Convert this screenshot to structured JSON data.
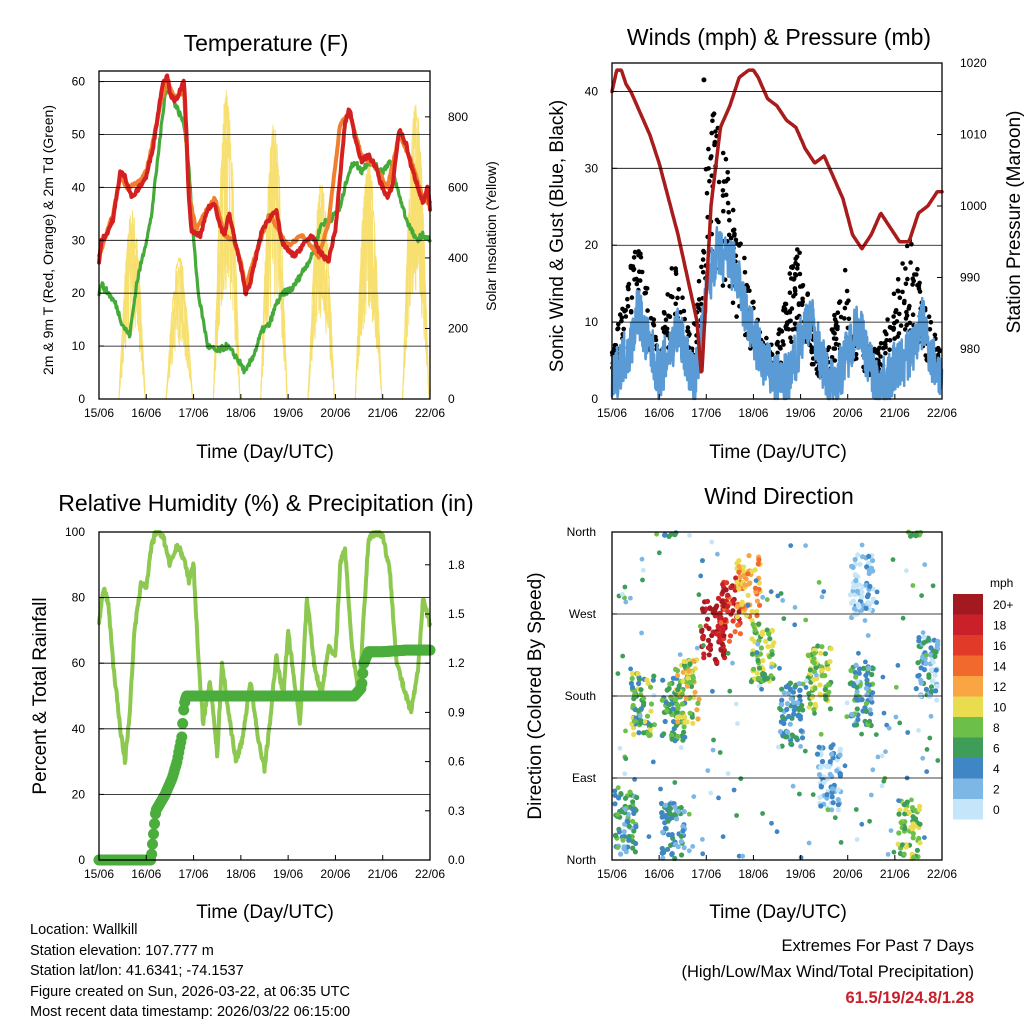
{
  "info": {
    "location": "Location: Wallkill",
    "elevation": "Station elevation: 107.777 m",
    "latlon": "Station lat/lon: 41.6341; -74.1537",
    "created": "Figure created on Sun, 2026-03-22, at 06:35 UTC",
    "latest": "Most recent data timestamp: 2026/03/22 06:15:00"
  },
  "extremes": {
    "title": "Extremes For Past 7 Days",
    "subtitle": "(High/Low/Max Wind/Total Precipitation)",
    "values": "61.5/19/24.8/1.28"
  },
  "colors": {
    "temp2m": "#d42020",
    "temp9m": "#f08030",
    "dewpoint": "#44aa3a",
    "solar": "#f7e070",
    "wind": "#5a9bd5",
    "gust": "#000000",
    "pressure": "#a81c1c",
    "rh": "#8dc850",
    "precip": "#4aad3c"
  },
  "chart_data": [
    {
      "type": "line",
      "title": "Temperature (F)",
      "xlabel": "Time (Day/UTC)",
      "ylabel": "2m & 9m T (Red, Orange) & 2m Td (Green)",
      "y2label": "Solar Insolation (Yellow)",
      "x_ticks": [
        "15/06",
        "16/06",
        "17/06",
        "18/06",
        "19/06",
        "20/06",
        "21/06",
        "22/06"
      ],
      "xlim": [
        0,
        7
      ],
      "ylim": [
        0,
        62
      ],
      "y_ticks": [
        0,
        10,
        20,
        30,
        40,
        50,
        60
      ],
      "y2lim": [
        0,
        930
      ],
      "y2_ticks": [
        0,
        200,
        400,
        600,
        800
      ],
      "grid": true,
      "series": [
        {
          "name": "2m T",
          "axis": "left",
          "color": "temp2m",
          "x": [
            0,
            0.05,
            0.15,
            0.3,
            0.45,
            0.55,
            0.7,
            0.85,
            1,
            1.15,
            1.25,
            1.35,
            1.45,
            1.5,
            1.6,
            1.7,
            1.8,
            1.85,
            1.9,
            1.95,
            2.05,
            2.15,
            2.3,
            2.45,
            2.55,
            2.65,
            2.75,
            2.85,
            3.0,
            3.1,
            3.2,
            3.3,
            3.45,
            3.6,
            3.75,
            3.85,
            4.0,
            4.15,
            4.3,
            4.5,
            4.65,
            4.85,
            5.0,
            5.1,
            5.2,
            5.3,
            5.4,
            5.55,
            5.7,
            5.85,
            5.95,
            6.1,
            6.2,
            6.35,
            6.5,
            6.6,
            6.75,
            6.85,
            6.95,
            7.0
          ],
          "y": [
            26,
            30,
            31,
            34,
            43,
            42,
            38,
            40,
            42,
            48,
            54,
            60,
            61,
            58,
            56,
            58,
            60,
            50,
            38,
            32,
            31,
            31,
            36,
            37,
            33,
            31,
            35,
            31,
            25,
            20,
            22,
            26,
            32,
            34,
            36,
            30,
            28,
            27,
            29,
            31,
            28,
            26,
            32,
            42,
            52,
            55,
            50,
            45,
            46,
            44,
            41,
            38,
            40,
            51,
            48,
            44,
            40,
            37,
            40,
            36
          ]
        },
        {
          "name": "9m T",
          "axis": "left",
          "color": "temp9m",
          "x": [
            0,
            0.3,
            0.45,
            0.6,
            0.85,
            1,
            1.15,
            1.3,
            1.45,
            1.6,
            1.8,
            1.9,
            2.05,
            2.3,
            2.45,
            2.65,
            2.85,
            3.0,
            3.1,
            3.3,
            3.6,
            3.85,
            4.0,
            4.3,
            4.65,
            4.85,
            5.1,
            5.3,
            5.55,
            5.85,
            6.1,
            6.35,
            6.6,
            6.85,
            7.0
          ],
          "y": [
            27,
            35,
            42,
            40,
            41,
            43,
            49,
            56,
            60,
            57,
            58,
            39,
            32,
            36,
            38,
            31,
            30,
            26,
            21,
            27,
            35,
            31,
            29,
            31,
            27,
            33,
            52,
            54,
            46,
            44,
            40,
            50,
            45,
            38,
            37
          ]
        },
        {
          "name": "2m Td",
          "axis": "left",
          "color": "dewpoint",
          "x": [
            0,
            0.05,
            0.1,
            0.2,
            0.35,
            0.5,
            0.65,
            0.8,
            0.95,
            1.1,
            1.2,
            1.3,
            1.4,
            1.5,
            1.6,
            1.7,
            1.8,
            1.9,
            2.0,
            2.1,
            2.2,
            2.3,
            2.5,
            2.7,
            2.9,
            3.1,
            3.3,
            3.45,
            3.6,
            3.75,
            3.9,
            4.1,
            4.3,
            4.5,
            4.7,
            4.9,
            5.1,
            5.25,
            5.4,
            5.55,
            5.7,
            5.85,
            6.0,
            6.15,
            6.3,
            6.5,
            6.7,
            6.85,
            7.0
          ],
          "y": [
            20,
            22,
            21,
            20,
            18,
            14,
            12,
            22,
            28,
            34,
            42,
            50,
            58,
            58,
            56,
            54,
            52,
            44,
            30,
            20,
            15,
            10,
            9,
            10,
            8,
            5,
            9,
            13,
            14,
            18,
            20,
            21,
            24,
            27,
            33,
            34,
            36,
            42,
            45,
            43,
            45,
            44,
            43,
            45,
            40,
            34,
            30,
            31,
            30
          ]
        },
        {
          "name": "Solar",
          "axis": "right",
          "color": "solar",
          "style": "daily-peaks",
          "peaks_day_center": [
            0.7,
            1.7,
            2.7,
            3.7,
            4.7,
            5.7,
            6.7
          ],
          "peaks_value": [
            540,
            410,
            880,
            790,
            620,
            690,
            850
          ]
        }
      ]
    },
    {
      "type": "line",
      "title": "Winds (mph) & Pressure (mb)",
      "xlabel": "Time (Day/UTC)",
      "ylabel": "Sonic Wind & Gust (Blue, Black)",
      "y2label": "Station Pressure (Maroon)",
      "x_ticks": [
        "15/06",
        "16/06",
        "17/06",
        "18/06",
        "19/06",
        "20/06",
        "21/06",
        "22/06"
      ],
      "xlim": [
        0,
        7
      ],
      "ylim": [
        0,
        43.7
      ],
      "y_ticks": [
        0,
        10,
        20,
        30,
        40
      ],
      "y2lim": [
        973,
        1020
      ],
      "y2_ticks": [
        980,
        990,
        1000,
        1010,
        1020
      ],
      "grid": true,
      "series": [
        {
          "name": "Wind",
          "axis": "left",
          "color": "wind",
          "x": [
            0,
            0.2,
            0.4,
            0.55,
            0.7,
            0.9,
            1.0,
            1.2,
            1.4,
            1.6,
            1.75,
            1.9,
            2.0,
            2.2,
            2.4,
            2.6,
            2.8,
            3.0,
            3.2,
            3.4,
            3.6,
            3.8,
            4.0,
            4.2,
            4.4,
            4.6,
            4.8,
            5.0,
            5.2,
            5.4,
            5.6,
            5.8,
            6.0,
            6.2,
            6.4,
            6.6,
            6.8,
            7.0
          ],
          "y": [
            2,
            5,
            7,
            12,
            8,
            5,
            3,
            6,
            9,
            5,
            2,
            8,
            13,
            19,
            18,
            17,
            12,
            8,
            5,
            3,
            2,
            3,
            8,
            11,
            6,
            2,
            3,
            6,
            10,
            6,
            2,
            2,
            4,
            5,
            7,
            10,
            5,
            3
          ]
        },
        {
          "name": "Gust",
          "axis": "left",
          "color": "gust",
          "style": "points",
          "x": [
            0,
            0.2,
            0.35,
            0.5,
            0.6,
            0.75,
            0.9,
            1.0,
            1.15,
            1.3,
            1.45,
            1.55,
            1.7,
            1.85,
            1.95,
            2.05,
            2.15,
            2.25,
            2.4,
            2.55,
            2.7,
            2.85,
            3.0,
            3.15,
            3.3,
            3.45,
            3.6,
            3.75,
            3.9,
            4.05,
            4.2,
            4.35,
            4.5,
            4.65,
            4.8,
            4.95,
            5.1,
            5.25,
            5.4,
            5.55,
            5.7,
            5.85,
            6.0,
            6.15,
            6.3,
            6.45,
            6.6,
            6.75,
            6.9
          ],
          "y": [
            5,
            9,
            12,
            16,
            15,
            11,
            9,
            6,
            10,
            14,
            12,
            8,
            6,
            12,
            20,
            28,
            30,
            27,
            25,
            20,
            18,
            14,
            10,
            7,
            6,
            5,
            8,
            12,
            16,
            14,
            9,
            6,
            4,
            7,
            11,
            13,
            9,
            7,
            6,
            5,
            6,
            8,
            11,
            14,
            16,
            15,
            10,
            8,
            6
          ]
        },
        {
          "name": "Pressure",
          "axis": "right",
          "color": "pressure",
          "x": [
            0,
            0.1,
            0.2,
            0.3,
            0.4,
            0.6,
            0.8,
            1.0,
            1.2,
            1.4,
            1.6,
            1.8,
            1.9,
            2.0,
            2.1,
            2.3,
            2.5,
            2.7,
            2.9,
            3.0,
            3.1,
            3.3,
            3.5,
            3.7,
            3.9,
            4.1,
            4.3,
            4.5,
            4.7,
            4.9,
            5.1,
            5.3,
            5.5,
            5.7,
            5.9,
            6.1,
            6.3,
            6.5,
            6.7,
            6.9,
            7.0
          ],
          "y": [
            1016,
            1019,
            1019,
            1017,
            1016,
            1013,
            1010,
            1006,
            1001,
            996,
            990,
            984,
            976,
            988,
            1000,
            1011,
            1014,
            1018,
            1019,
            1019,
            1018,
            1015,
            1014,
            1012,
            1011,
            1008,
            1006,
            1007,
            1004,
            1001,
            996,
            994,
            996,
            999,
            997,
            995,
            995,
            999,
            1000,
            1002,
            1002
          ]
        }
      ]
    },
    {
      "type": "line",
      "title": "Relative Humidity (%) & Precipitation (in)",
      "xlabel": "Time (Day/UTC)",
      "ylabel": "Percent & Total Rainfall",
      "x_ticks": [
        "15/06",
        "16/06",
        "17/06",
        "18/06",
        "19/06",
        "20/06",
        "21/06",
        "22/06"
      ],
      "xlim": [
        0,
        7
      ],
      "ylim": [
        0,
        100
      ],
      "y_ticks": [
        0,
        20,
        40,
        60,
        80,
        100
      ],
      "y2lim": [
        0,
        2.0
      ],
      "y2_ticks": [
        0.0,
        0.3,
        0.6,
        0.9,
        1.2,
        1.5,
        1.8
      ],
      "grid": true,
      "series": [
        {
          "name": "RH",
          "axis": "left",
          "color": "rh",
          "x": [
            0,
            0.1,
            0.2,
            0.3,
            0.45,
            0.55,
            0.65,
            0.75,
            0.9,
            1.0,
            1.1,
            1.2,
            1.35,
            1.5,
            1.65,
            1.8,
            1.9,
            2.0,
            2.1,
            2.2,
            2.35,
            2.5,
            2.6,
            2.75,
            2.9,
            3.05,
            3.2,
            3.35,
            3.5,
            3.6,
            3.75,
            3.9,
            4.0,
            4.1,
            4.25,
            4.4,
            4.55,
            4.7,
            4.85,
            5.0,
            5.1,
            5.2,
            5.35,
            5.5,
            5.6,
            5.7,
            5.85,
            6.0,
            6.15,
            6.3,
            6.45,
            6.6,
            6.75,
            6.85,
            7.0
          ],
          "y": [
            72,
            83,
            78,
            60,
            40,
            30,
            45,
            70,
            85,
            83,
            95,
            100,
            99,
            90,
            96,
            92,
            85,
            90,
            62,
            42,
            55,
            32,
            60,
            44,
            30,
            38,
            55,
            38,
            28,
            40,
            62,
            50,
            70,
            58,
            42,
            80,
            60,
            50,
            65,
            62,
            90,
            95,
            65,
            50,
            75,
            98,
            100,
            99,
            88,
            60,
            52,
            45,
            58,
            80,
            72
          ]
        },
        {
          "name": "Precipitation",
          "axis": "right",
          "color": "precip",
          "x": [
            0,
            0.5,
            1.0,
            1.1,
            1.2,
            1.4,
            1.55,
            1.65,
            1.75,
            1.8,
            1.85,
            1.9,
            2.0,
            2.5,
            3.0,
            3.5,
            4.0,
            4.5,
            5.0,
            5.4,
            5.55,
            5.6,
            5.7,
            5.85,
            6.0,
            6.5,
            7.0
          ],
          "y": [
            0.0,
            0.0,
            0.0,
            0.0,
            0.3,
            0.4,
            0.5,
            0.6,
            0.75,
            0.95,
            1.0,
            1.0,
            1.0,
            1.0,
            1.0,
            1.0,
            1.0,
            1.0,
            1.0,
            1.0,
            1.05,
            1.2,
            1.27,
            1.27,
            1.27,
            1.28,
            1.28
          ]
        }
      ]
    },
    {
      "type": "scatter",
      "title": "Wind Direction",
      "xlabel": "Time (Day/UTC)",
      "ylabel": "Direction (Colored By Speed)",
      "x_ticks": [
        "15/06",
        "16/06",
        "17/06",
        "18/06",
        "19/06",
        "20/06",
        "21/06",
        "22/06"
      ],
      "xlim": [
        0,
        7
      ],
      "y_categories": [
        "North",
        "East",
        "South",
        "West",
        "North"
      ],
      "ylim": [
        0,
        360
      ],
      "colorbar": {
        "unit": "mph",
        "labels": [
          "20+",
          "18",
          "16",
          "14",
          "12",
          "10",
          "8",
          "6",
          "4",
          "2",
          "0"
        ],
        "colors": [
          "#a21a1f",
          "#c9202a",
          "#e23a28",
          "#f2692e",
          "#f9a544",
          "#e9dc4e",
          "#6cbf49",
          "#3e9e58",
          "#3f86c5",
          "#7db7e5",
          "#c5e6fa"
        ]
      },
      "clusters": [
        {
          "x": 0.3,
          "dir": 40,
          "speed": 5
        },
        {
          "x": 0.65,
          "dir": 170,
          "speed": 7
        },
        {
          "x": 1.3,
          "dir": 30,
          "speed": 4
        },
        {
          "x": 1.3,
          "dir": 165,
          "speed": 6
        },
        {
          "x": 1.6,
          "dir": 185,
          "speed": 9
        },
        {
          "x": 2.15,
          "dir": 250,
          "speed": 20
        },
        {
          "x": 2.5,
          "dir": 275,
          "speed": 17
        },
        {
          "x": 2.9,
          "dir": 300,
          "speed": 12
        },
        {
          "x": 3.2,
          "dir": 230,
          "speed": 8
        },
        {
          "x": 3.8,
          "dir": 160,
          "speed": 4
        },
        {
          "x": 4.4,
          "dir": 200,
          "speed": 8
        },
        {
          "x": 4.6,
          "dir": 90,
          "speed": 2
        },
        {
          "x": 5.3,
          "dir": 180,
          "speed": 5
        },
        {
          "x": 5.3,
          "dir": 300,
          "speed": 1
        },
        {
          "x": 6.3,
          "dir": 30,
          "speed": 8
        },
        {
          "x": 6.7,
          "dir": 210,
          "speed": 3
        }
      ]
    }
  ]
}
